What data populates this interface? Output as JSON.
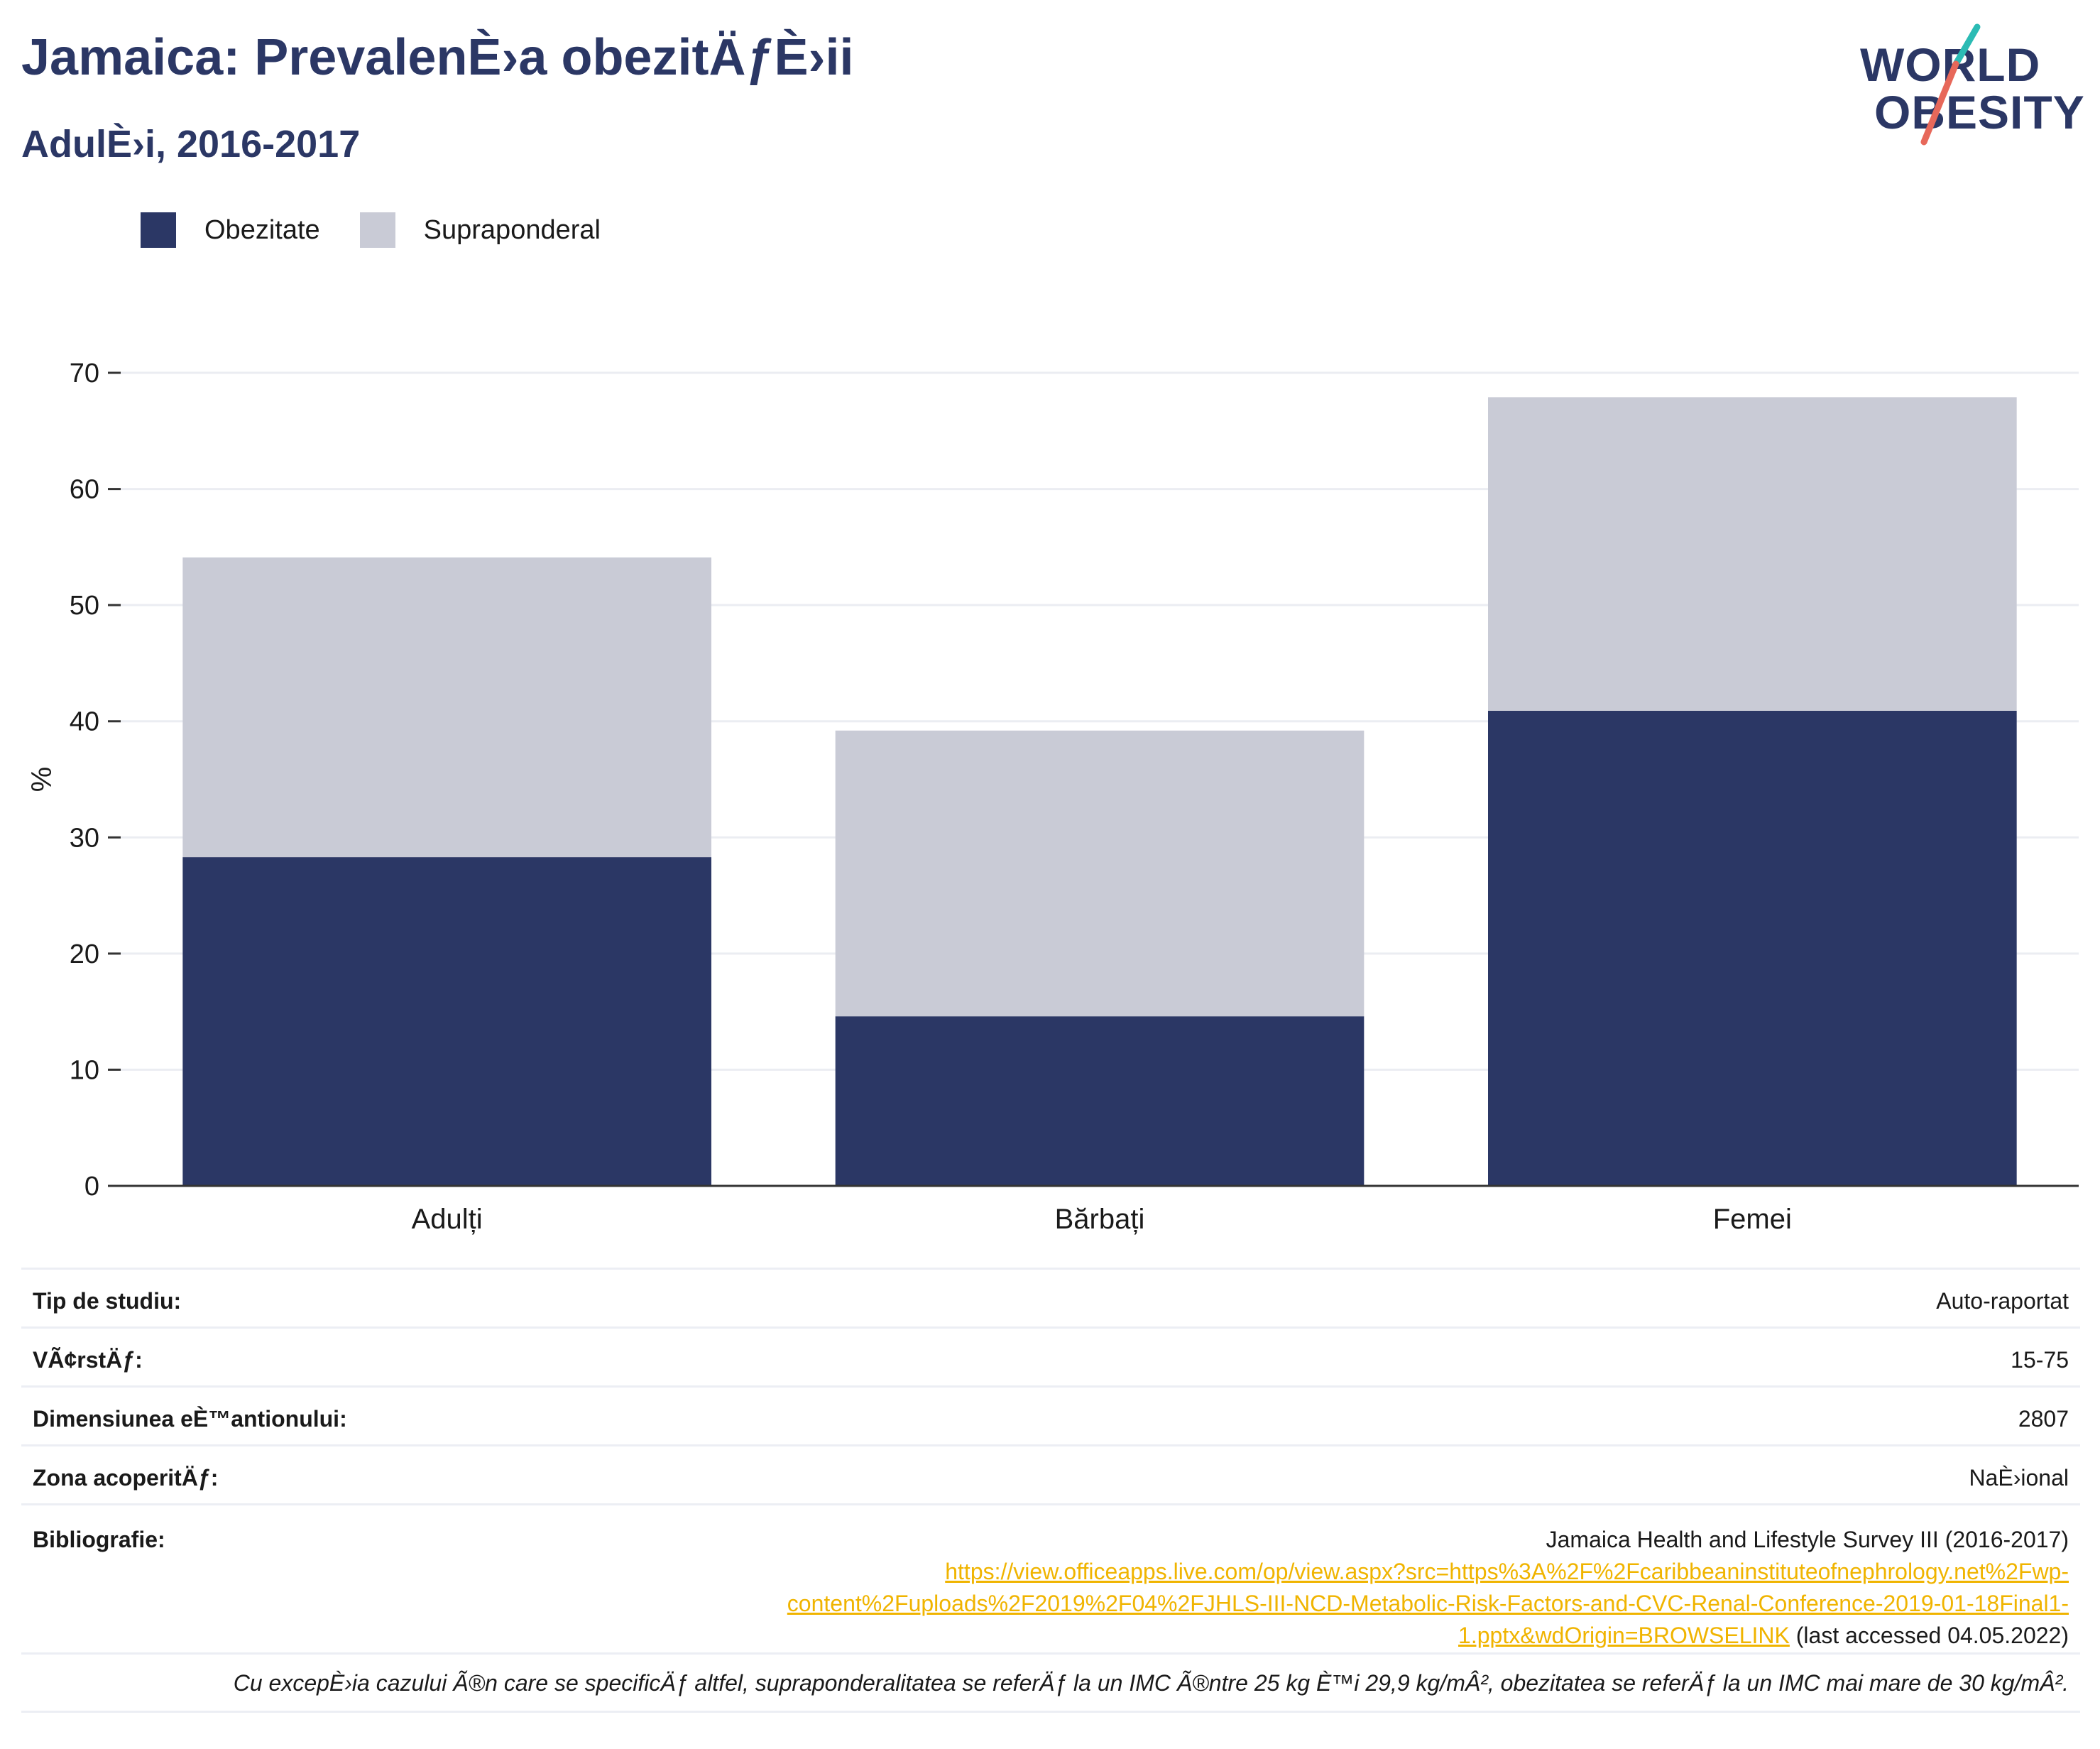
{
  "header": {
    "title": "Jamaica: PrevalenÈ›a obezitÄƒÈ›ii",
    "subtitle": "AdulÈ›i, 2016-2017"
  },
  "logo": {
    "line1": "WORLD",
    "line2": "OBESITY",
    "accent_teal": "#2bbbb4",
    "accent_red": "#e7685a"
  },
  "legend": [
    {
      "label": "Obezitate",
      "color": "#2b3765"
    },
    {
      "label": "Supraponderal",
      "color": "#c9cbd6"
    }
  ],
  "chart_data": {
    "type": "bar",
    "stacked": true,
    "categories": [
      "Adulți",
      "Bărbați",
      "Femei"
    ],
    "series": [
      {
        "name": "Obezitate",
        "color": "#2b3765",
        "values": [
          28.3,
          14.6,
          40.9
        ]
      },
      {
        "name": "Supraponderal",
        "color": "#c9cbd6",
        "values": [
          25.8,
          24.6,
          27.0
        ]
      }
    ],
    "ylabel": "%",
    "ylim": [
      0,
      70
    ],
    "yticks": [
      0,
      10,
      20,
      30,
      40,
      50,
      60,
      70
    ],
    "grid": true,
    "legend_position": "top-left"
  },
  "info": {
    "study_type": {
      "label": "Tip de studiu:",
      "value": "Auto-raportat"
    },
    "age": {
      "label": "VÃ¢rstÄƒ:",
      "value": "15-75"
    },
    "sample_size": {
      "label": "Dimensiunea eÈ™antionului:",
      "value": "2807"
    },
    "coverage": {
      "label": "Zona acoperitÄƒ:",
      "value": "NaÈ›ional"
    },
    "bibliography": {
      "label": "Bibliografie:",
      "source": "Jamaica Health and Lifestyle Survey III (2016-2017)",
      "link_line1": "https://view.officeapps.live.com/op/view.aspx?src=https%3A%2F%2Fcaribbeaninstituteofnephrology.net%2Fwp-",
      "link_line2": "content%2Fuploads%2F2019%2F04%2FJHLS-III-NCD-Metabolic-Risk-Factors-and-CVC-Renal-Conference-2019-01-18Final1-",
      "link_line3": "1.pptx&wdOrigin=BROWSELINK",
      "accessed": " (last accessed 04.05.2022)"
    },
    "footnote": "Cu excepÈ›ia cazului Ã®n care se specificÄƒ altfel, supraponderalitatea se referÄƒ la un IMC Ã®ntre 25 kg È™i 29,9 kg/mÂ², obezitatea se referÄƒ la un IMC mai mare de 30 kg/mÂ²."
  }
}
